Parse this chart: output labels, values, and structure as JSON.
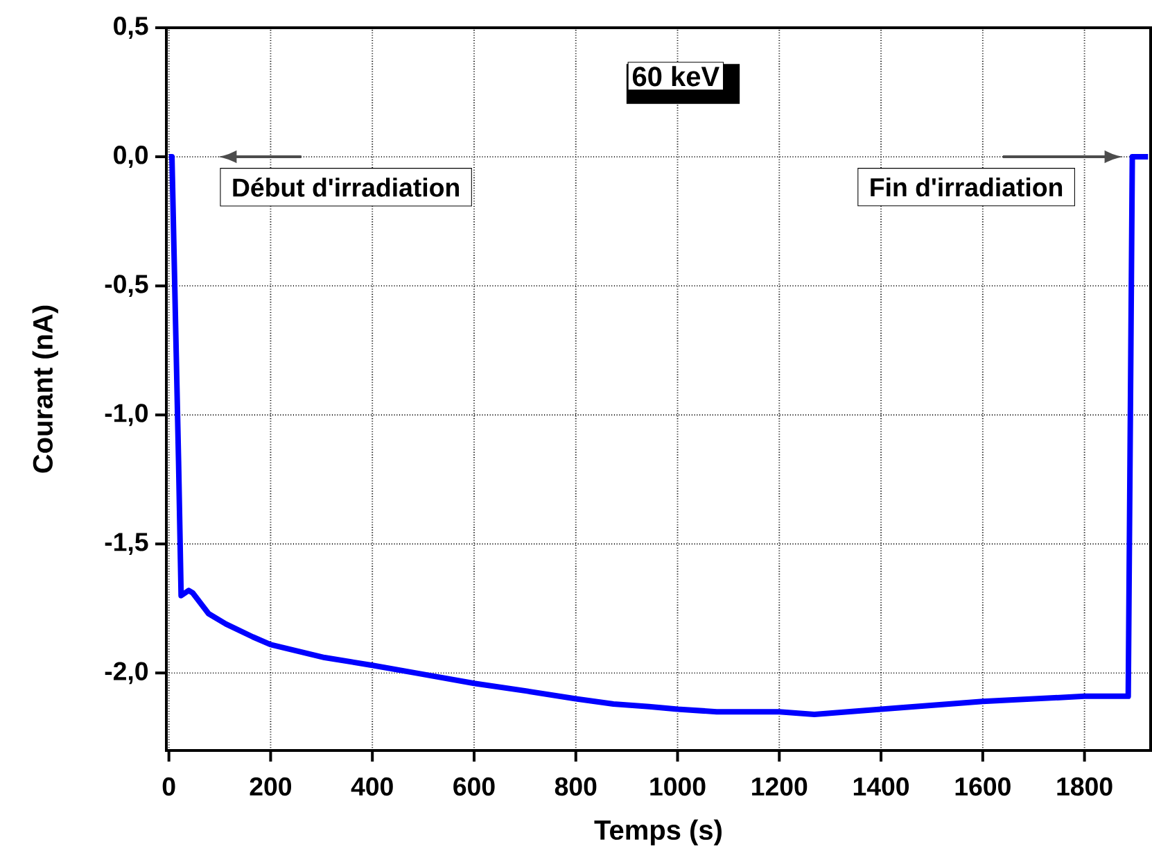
{
  "chart_data": {
    "type": "line",
    "title": "60 keV",
    "xlabel": "Temps (s)",
    "ylabel": "Courant (nA)",
    "x": [
      0,
      6,
      19,
      24,
      39,
      47,
      78,
      112,
      165,
      200,
      306,
      400,
      486,
      600,
      704,
      800,
      874,
      944,
      1000,
      1077,
      1200,
      1269,
      1400,
      1600,
      1800,
      1886,
      1894,
      1925
    ],
    "series": [
      {
        "color": "#0000ff",
        "values": [
          0,
          0,
          -1.18,
          -1.7,
          -1.68,
          -1.69,
          -1.77,
          -1.81,
          -1.86,
          -1.89,
          -1.94,
          -1.97,
          -2.0,
          -2.04,
          -2.07,
          -2.1,
          -2.12,
          -2.13,
          -2.14,
          -2.15,
          -2.15,
          -2.16,
          -2.14,
          -2.11,
          -2.09,
          -2.09,
          0,
          0
        ]
      }
    ],
    "xlim": [
      -5,
      1930
    ],
    "ylim": [
      -2.3,
      0.5
    ],
    "xticks": [
      0,
      200,
      400,
      600,
      800,
      1000,
      1200,
      1400,
      1600,
      1800
    ],
    "yticks": [
      {
        "value": 0.5,
        "label": "0,5"
      },
      {
        "value": 0,
        "label": "0,0"
      },
      {
        "value": -0.5,
        "label": "-0,5"
      },
      {
        "value": -1,
        "label": "-1,0"
      },
      {
        "value": -1.5,
        "label": "-1,5"
      },
      {
        "value": -2,
        "label": "-2,0"
      }
    ],
    "grid": true,
    "marker": "none",
    "line_style": "solid",
    "annotations": [
      {
        "text": "Début d'irradiation",
        "x": 6,
        "y": 0
      },
      {
        "text": "Fin d'irradiation",
        "x": 1894,
        "y": 0
      }
    ]
  }
}
